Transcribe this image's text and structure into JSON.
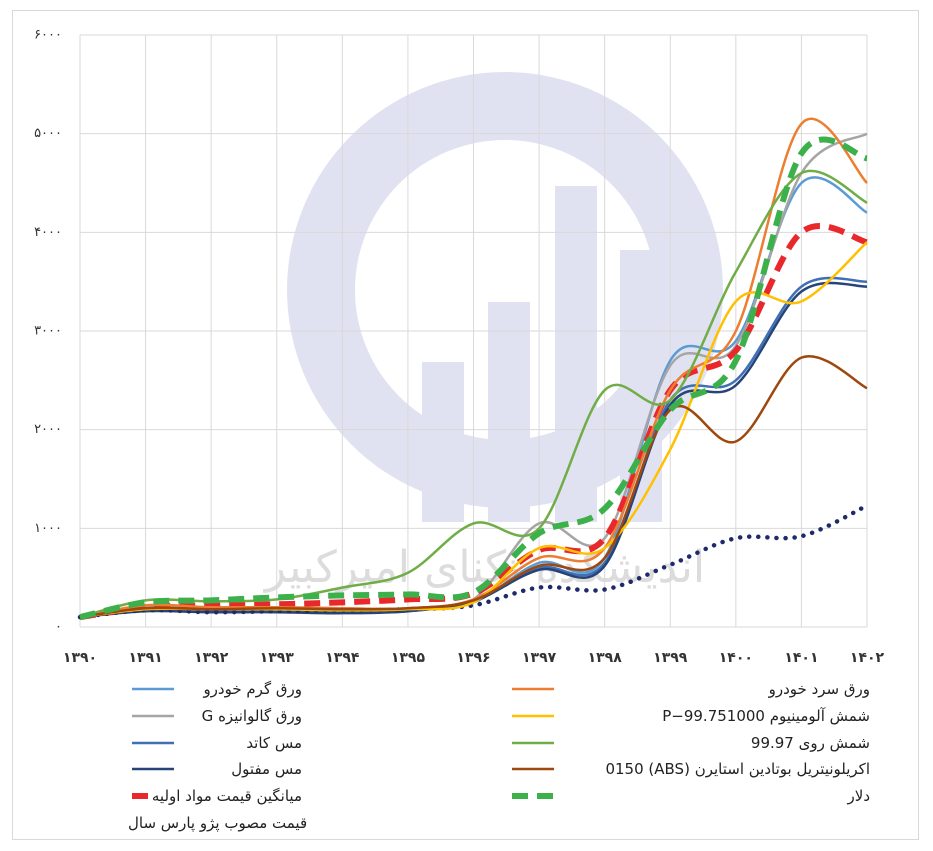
{
  "chart_data": {
    "type": "line",
    "watermark": "اندیشکده تکنای امیرکبیر",
    "categories": [
      "۱۳۹۰",
      "۱۳۹۱",
      "۱۳۹۲",
      "۱۳۹۳",
      "۱۳۹۴",
      "۱۳۹۵",
      "۱۳۹۶",
      "۱۳۹۷",
      "۱۳۹۸",
      "۱۳۹۹",
      "۱۴۰۰",
      "۱۴۰۱",
      "۱۴۰۲"
    ],
    "ylim": [
      0,
      6000
    ],
    "yticks": [
      {
        "value": 0,
        "label": "۰"
      },
      {
        "value": 1000,
        "label": "۱۰۰۰"
      },
      {
        "value": 2000,
        "label": "۲۰۰۰"
      },
      {
        "value": 3000,
        "label": "۳۰۰۰"
      },
      {
        "value": 4000,
        "label": "۴۰۰۰"
      },
      {
        "value": 5000,
        "label": "۵۰۰۰"
      },
      {
        "value": 6000,
        "label": "۶۰۰۰"
      }
    ],
    "grid": true,
    "series": [
      {
        "name": "ورق گرم خودرو",
        "color": "#5b9bd5",
        "style": "solid",
        "values": [
          100,
          200,
          180,
          180,
          170,
          170,
          250,
          650,
          700,
          2700,
          2900,
          4500,
          4200
        ]
      },
      {
        "name": "ورق گالوانیزه G",
        "color": "#a5a5a5",
        "style": "solid",
        "values": [
          100,
          210,
          200,
          200,
          190,
          190,
          280,
          1050,
          900,
          2650,
          2850,
          4600,
          5000
        ]
      },
      {
        "name": "مس کاتد",
        "color": "#3f6fb5",
        "style": "solid",
        "values": [
          100,
          170,
          160,
          160,
          150,
          160,
          270,
          600,
          650,
          2300,
          2500,
          3450,
          3500
        ]
      },
      {
        "name": "مس مفتول",
        "color": "#264478",
        "style": "solid",
        "values": [
          100,
          160,
          150,
          150,
          140,
          160,
          260,
          580,
          620,
          2250,
          2450,
          3400,
          3450
        ]
      },
      {
        "name": "میانگین قیمت مواد اولیه",
        "color": "#e8282b",
        "style": "dashed",
        "values": [
          100,
          200,
          220,
          230,
          250,
          280,
          340,
          780,
          900,
          2400,
          2800,
          4000,
          3900
        ]
      },
      {
        "name": "قیمت مصوب پژو پارس سال",
        "color": "#1f2a6b",
        "style": "dotted",
        "values": [
          100,
          170,
          150,
          160,
          170,
          180,
          220,
          400,
          380,
          630,
          900,
          920,
          1230
        ]
      },
      {
        "name": "ورق سرد خودرو",
        "color": "#ed7d31",
        "style": "solid",
        "values": [
          100,
          220,
          200,
          200,
          190,
          190,
          280,
          700,
          800,
          2400,
          3000,
          5100,
          4500
        ]
      },
      {
        "name": "شمش آلومینیوم P−99.751000",
        "color": "#ffc000",
        "style": "solid",
        "values": [
          100,
          180,
          180,
          180,
          170,
          180,
          250,
          800,
          800,
          1800,
          3300,
          3300,
          3900
        ]
      },
      {
        "name": "شمش روی 99.97",
        "color": "#70ad47",
        "style": "solid",
        "values": [
          100,
          270,
          260,
          280,
          400,
          550,
          1050,
          1000,
          2400,
          2300,
          3600,
          4600,
          4300
        ]
      },
      {
        "name": "اکریلونیتریل بوتادین استایرن (ABS) 0150",
        "color": "#9e480e",
        "style": "solid",
        "values": [
          100,
          190,
          180,
          190,
          180,
          190,
          270,
          620,
          700,
          2200,
          1880,
          2730,
          2420
        ]
      },
      {
        "name": "دلار",
        "color": "#3cb04a",
        "style": "dashed",
        "values": [
          100,
          250,
          270,
          300,
          320,
          330,
          350,
          950,
          1200,
          2200,
          2700,
          4800,
          4750
        ]
      }
    ]
  }
}
